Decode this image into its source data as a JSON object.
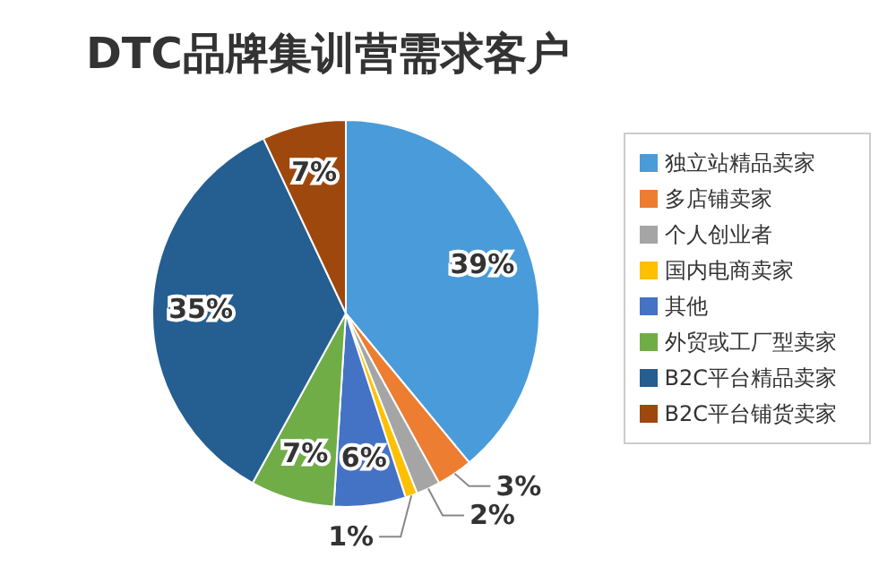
{
  "chart_data": {
    "type": "pie",
    "title": "DTC品牌集训营需求客户",
    "categories": [
      "独立站精品卖家",
      "多店铺卖家",
      "个人创业者",
      "国内电商卖家",
      "其他",
      "外贸或工厂型卖家",
      "B2C平台精品卖家",
      "B2C平台铺货卖家"
    ],
    "values": [
      39,
      3,
      2,
      1,
      6,
      7,
      35,
      7
    ],
    "value_labels": [
      "39%",
      "3%",
      "2%",
      "1%",
      "6%",
      "7%",
      "35%",
      "7%"
    ],
    "colors": [
      "#4a9bd9",
      "#ed7d31",
      "#a5a5a5",
      "#ffc000",
      "#4472c4",
      "#70ad47",
      "#255e91",
      "#9e480e"
    ],
    "legend": "right"
  }
}
